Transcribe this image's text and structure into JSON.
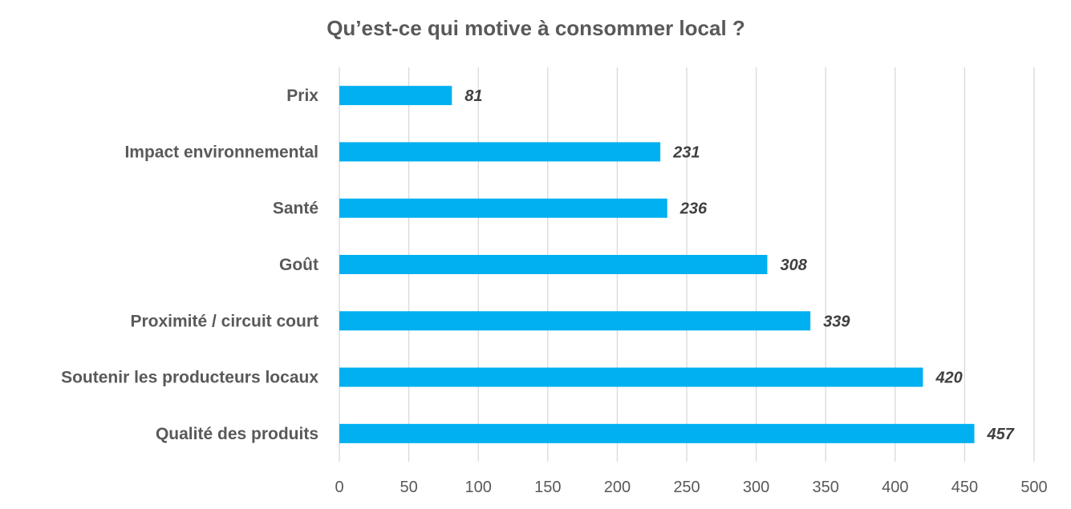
{
  "chart_data": {
    "type": "bar",
    "orientation": "horizontal",
    "title": "Qu’est-ce qui motive à consommer local ?",
    "xlabel": "",
    "ylabel": "",
    "categories": [
      "Prix",
      "Impact environnemental",
      "Santé",
      "Goût",
      "Proximité / circuit court",
      "Soutenir les producteurs locaux",
      "Qualité des produits"
    ],
    "values": [
      81,
      231,
      236,
      308,
      339,
      420,
      457
    ],
    "data_labels": [
      "81",
      "231",
      "236",
      "308",
      "339",
      "420",
      "457"
    ],
    "xlim": [
      0,
      500
    ],
    "x_ticks": [
      "0",
      "50",
      "100",
      "150",
      "200",
      "250",
      "300",
      "350",
      "400",
      "450",
      "500"
    ],
    "grid": "vertical",
    "legend": "none",
    "bar_color": "#00B0F0",
    "grid_color": "#D9D9D9"
  }
}
